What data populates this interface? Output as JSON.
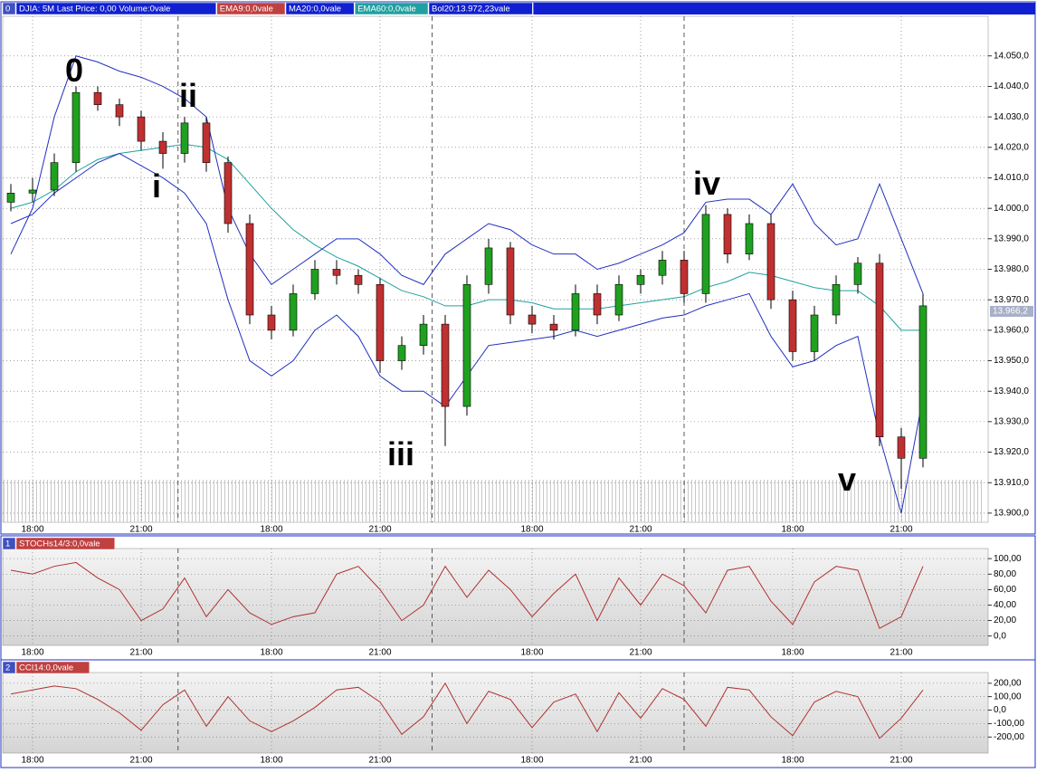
{
  "chart_data": [
    {
      "type": "candlestick",
      "header": [
        {
          "text": "0",
          "color": "#4050c0"
        },
        {
          "text": "DJIA: 5M Last Price: 0,00 Volume:0vale",
          "color": "#1020d0"
        },
        {
          "text": "EMA9:0,0vale",
          "color": "#c04040"
        },
        {
          "text": "MA20:0,0vale",
          "color": "#1020d0"
        },
        {
          "text": "EMA60:0,0vale",
          "color": "#20a0a0"
        },
        {
          "text": "Bol20:13.972,23vale",
          "color": "#1020d0"
        }
      ],
      "categories": [
        null,
        "18:00",
        null,
        null,
        null,
        null,
        "21:00",
        null,
        null,
        null,
        null,
        null,
        "18:00",
        null,
        null,
        null,
        null,
        "21:00",
        null,
        null,
        null,
        null,
        null,
        null,
        "18:00",
        null,
        null,
        null,
        null,
        "21:00",
        null,
        null,
        null,
        null,
        null,
        null,
        "18:00",
        null,
        null,
        null,
        null,
        "21:00",
        null
      ],
      "open": [
        14002,
        14005,
        14006,
        14015,
        14038,
        14034,
        14030,
        14022,
        14018,
        14028,
        14015,
        13995,
        13965,
        13960,
        13972,
        13980,
        13978,
        13975,
        13950,
        13955,
        13962,
        13935,
        13975,
        13987,
        13965,
        13962,
        13960,
        13972,
        13965,
        13975,
        13978,
        13983,
        13972,
        13998,
        13985,
        13995,
        13970,
        13953,
        13965,
        13975,
        13982,
        13925,
        13918
      ],
      "high": [
        14008,
        14010,
        14018,
        14040,
        14040,
        14036,
        14032,
        14025,
        14030,
        14030,
        14017,
        13998,
        13968,
        13975,
        13983,
        13983,
        13980,
        13977,
        13958,
        13965,
        13965,
        13978,
        13990,
        13989,
        13968,
        13965,
        13975,
        13975,
        13978,
        13980,
        13986,
        13986,
        14001,
        14000,
        13998,
        13998,
        13973,
        13968,
        13978,
        13984,
        13985,
        13928,
        13972
      ],
      "low": [
        13999,
        14002,
        14004,
        14012,
        14032,
        14027,
        14019,
        14013,
        14015,
        14012,
        13992,
        13962,
        13957,
        13958,
        13970,
        13975,
        13972,
        13946,
        13947,
        13952,
        13922,
        13932,
        13972,
        13962,
        13959,
        13957,
        13958,
        13962,
        13963,
        13972,
        13975,
        13969,
        13969,
        13982,
        13983,
        13967,
        13950,
        13950,
        13962,
        13972,
        13922,
        13908,
        13915
      ],
      "close": [
        14005,
        14006,
        14015,
        14038,
        14034,
        14030,
        14022,
        14018,
        14028,
        14015,
        13995,
        13965,
        13960,
        13972,
        13980,
        13978,
        13975,
        13950,
        13955,
        13962,
        13935,
        13975,
        13987,
        13965,
        13962,
        13960,
        13972,
        13965,
        13975,
        13978,
        13983,
        13972,
        13998,
        13985,
        13995,
        13970,
        13953,
        13965,
        13975,
        13982,
        13925,
        13918,
        13968
      ],
      "up_color": "#20a020",
      "down_color": "#c03030",
      "series": [
        {
          "color": "#20a0a0",
          "values": [
            14000,
            14002,
            14006,
            14012,
            14016,
            14018,
            14019,
            14020,
            14021,
            14020,
            14016,
            14008,
            14000,
            13993,
            13988,
            13984,
            13981,
            13977,
            13973,
            13971,
            13968,
            13968,
            13970,
            13970,
            13969,
            13967,
            13967,
            13967,
            13968,
            13969,
            13970,
            13971,
            13974,
            13976,
            13979,
            13978,
            13976,
            13974,
            13973,
            13973,
            13968,
            13960,
            13960
          ]
        },
        {
          "color": "#2030c0",
          "values": [
            13985,
            14000,
            14030,
            14050,
            14048,
            14045,
            14043,
            14040,
            14036,
            14030,
            14000,
            13985,
            13975,
            13980,
            13985,
            13990,
            13990,
            13985,
            13978,
            13975,
            13985,
            13990,
            13995,
            13993,
            13988,
            13985,
            13985,
            13980,
            13982,
            13985,
            13988,
            13992,
            14002,
            14003,
            14003,
            13998,
            14008,
            13995,
            13988,
            13990,
            14008,
            13990,
            13972
          ]
        },
        {
          "color": "#2030c0",
          "values": [
            13995,
            13998,
            14005,
            14010,
            14015,
            14018,
            14014,
            14010,
            14005,
            13995,
            13970,
            13950,
            13945,
            13950,
            13960,
            13965,
            13958,
            13945,
            13940,
            13940,
            13935,
            13945,
            13955,
            13956,
            13957,
            13958,
            13960,
            13958,
            13960,
            13962,
            13964,
            13965,
            13968,
            13970,
            13972,
            13958,
            13948,
            13950,
            13955,
            13958,
            13925,
            13900,
            13938
          ]
        }
      ],
      "ylim": [
        13897,
        14063
      ],
      "yticks": [
        {
          "value": 14050,
          "label": "14.050,0"
        },
        {
          "value": 14040,
          "label": "14.040,0"
        },
        {
          "value": 14030,
          "label": "14.030,0"
        },
        {
          "value": 14020,
          "label": "14.020,0"
        },
        {
          "value": 14010,
          "label": "14.010,0"
        },
        {
          "value": 14000,
          "label": "14.000,0"
        },
        {
          "value": 13990,
          "label": "13.990,0"
        },
        {
          "value": 13980,
          "label": "13.980,0"
        },
        {
          "value": 13970,
          "label": "13.970,0"
        },
        {
          "value": 13960,
          "label": "13.960,0"
        },
        {
          "value": 13950,
          "label": "13.950,0"
        },
        {
          "value": 13940,
          "label": "13.940,0"
        },
        {
          "value": 13930,
          "label": "13.930,0"
        },
        {
          "value": 13920,
          "label": "13.920,0"
        },
        {
          "value": 13910,
          "label": "13.910,0"
        },
        {
          "value": 13900,
          "label": "13.900,0"
        }
      ],
      "last_price": {
        "value": 13966.2,
        "label": "13.966,2"
      },
      "annotations": [
        "0",
        "i",
        "ii",
        "iii",
        "iv",
        "v"
      ],
      "grid": true
    },
    {
      "type": "line",
      "header": [
        {
          "text": "1",
          "color": "#4050c0"
        },
        {
          "text": "STOCHs14/3:0,0vale",
          "color": "#c04040"
        }
      ],
      "color": "#b03030",
      "values": [
        85,
        80,
        90,
        95,
        75,
        60,
        20,
        35,
        75,
        25,
        60,
        30,
        15,
        25,
        30,
        80,
        90,
        60,
        20,
        40,
        90,
        50,
        85,
        60,
        25,
        55,
        80,
        20,
        75,
        40,
        80,
        65,
        30,
        85,
        90,
        45,
        15,
        70,
        90,
        85,
        10,
        25,
        90
      ],
      "ylim": [
        -12,
        113
      ],
      "yticks": [
        {
          "value": 100,
          "label": "100,00"
        },
        {
          "value": 80,
          "label": "80,00"
        },
        {
          "value": 60,
          "label": "60,00"
        },
        {
          "value": 40,
          "label": "40,00"
        },
        {
          "value": 20,
          "label": "20,00"
        },
        {
          "value": 0,
          "label": "0,0"
        }
      ],
      "grid": true
    },
    {
      "type": "line",
      "header": [
        {
          "text": "2",
          "color": "#4050c0"
        },
        {
          "text": "CCI14:0,0vale",
          "color": "#c04040"
        }
      ],
      "color": "#b03030",
      "values": [
        120,
        150,
        180,
        160,
        80,
        -20,
        -150,
        40,
        150,
        -120,
        100,
        -80,
        -160,
        -80,
        20,
        150,
        170,
        60,
        -180,
        -50,
        200,
        -100,
        140,
        80,
        -130,
        60,
        120,
        -160,
        130,
        -60,
        160,
        80,
        -120,
        170,
        150,
        -50,
        -190,
        60,
        140,
        100,
        -210,
        -60,
        150
      ],
      "ylim": [
        -320,
        280
      ],
      "yticks": [
        {
          "value": 200,
          "label": "200,00"
        },
        {
          "value": 100,
          "label": "100,00"
        },
        {
          "value": 0,
          "label": "0,0"
        },
        {
          "value": -100,
          "label": "-100,00"
        },
        {
          "value": -200,
          "label": "-200,00"
        }
      ],
      "grid": true
    }
  ]
}
